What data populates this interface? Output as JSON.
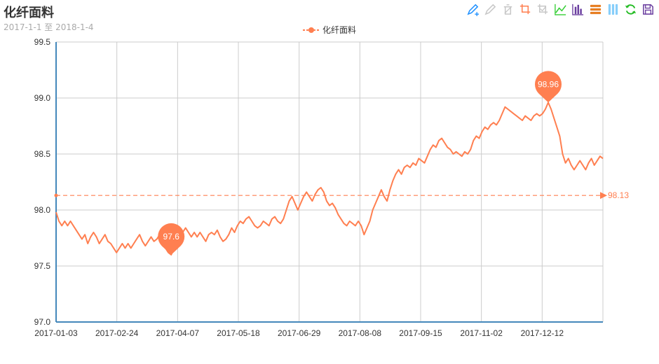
{
  "title": "化纤面料",
  "subtitle": "2017-1-1 至 2018-1-4",
  "legend": {
    "label": "化纤面料"
  },
  "colors": {
    "series": "#ff7f50",
    "axis": "#48b",
    "grid": "#cccccc"
  },
  "toolbox": [
    "mark-pen-icon",
    "mark-undo-icon",
    "mark-clear-icon",
    "data-zoom-icon",
    "data-zoom-reset-icon",
    "line-chart-icon",
    "bar-chart-icon",
    "stack-icon",
    "tiled-icon",
    "restore-icon",
    "save-image-icon"
  ],
  "chart_data": {
    "type": "line",
    "title": "化纤面料",
    "subtitle": "2017-1-1 至 2018-1-4",
    "xlabel": "",
    "ylabel": "",
    "ylim": [
      97.0,
      99.5
    ],
    "yticks": [
      "97.0",
      "97.5",
      "98.0",
      "98.5",
      "99.0",
      "99.5"
    ],
    "xticks": [
      "2017-01-03",
      "2017-02-24",
      "2017-04-07",
      "2017-05-18",
      "2017-06-29",
      "2017-08-08",
      "2017-09-15",
      "2017-11-02",
      "2017-12-12"
    ],
    "grid": true,
    "legend_position": "top-center",
    "markers": {
      "max": "98.96",
      "min": "97.6",
      "average": "98.13"
    },
    "series": [
      {
        "name": "化纤面料",
        "values": [
          97.98,
          97.9,
          97.86,
          97.9,
          97.86,
          97.9,
          97.86,
          97.82,
          97.78,
          97.74,
          97.78,
          97.7,
          97.76,
          97.8,
          97.76,
          97.7,
          97.74,
          97.78,
          97.72,
          97.7,
          97.66,
          97.62,
          97.66,
          97.7,
          97.66,
          97.7,
          97.66,
          97.7,
          97.74,
          97.78,
          97.72,
          97.68,
          97.72,
          97.76,
          97.72,
          97.74,
          97.78,
          97.7,
          97.66,
          97.62,
          97.6,
          97.66,
          97.7,
          97.74,
          97.8,
          97.84,
          97.8,
          97.76,
          97.8,
          97.76,
          97.8,
          97.76,
          97.72,
          97.78,
          97.8,
          97.78,
          97.82,
          97.76,
          97.72,
          97.74,
          97.78,
          97.84,
          97.8,
          97.86,
          97.9,
          97.88,
          97.92,
          97.94,
          97.9,
          97.86,
          97.84,
          97.86,
          97.9,
          97.88,
          97.86,
          97.92,
          97.94,
          97.9,
          97.88,
          97.92,
          98.0,
          98.08,
          98.12,
          98.06,
          98.0,
          98.06,
          98.12,
          98.16,
          98.12,
          98.08,
          98.14,
          98.18,
          98.2,
          98.16,
          98.08,
          98.04,
          98.06,
          98.02,
          97.96,
          97.92,
          97.88,
          97.86,
          97.9,
          97.88,
          97.86,
          97.9,
          97.86,
          97.78,
          97.84,
          97.9,
          98.0,
          98.06,
          98.12,
          98.18,
          98.12,
          98.08,
          98.18,
          98.26,
          98.32,
          98.36,
          98.32,
          98.38,
          98.4,
          98.38,
          98.42,
          98.4,
          98.46,
          98.44,
          98.42,
          98.48,
          98.54,
          98.58,
          98.56,
          98.62,
          98.64,
          98.6,
          98.56,
          98.54,
          98.5,
          98.52,
          98.5,
          98.48,
          98.52,
          98.5,
          98.54,
          98.62,
          98.66,
          98.64,
          98.7,
          98.74,
          98.72,
          98.76,
          98.78,
          98.76,
          98.8,
          98.86,
          98.92,
          98.9,
          98.88,
          98.86,
          98.84,
          98.82,
          98.8,
          98.84,
          98.82,
          98.8,
          98.84,
          98.86,
          98.84,
          98.86,
          98.9,
          98.96,
          98.9,
          98.82,
          98.74,
          98.66,
          98.5,
          98.42,
          98.46,
          98.4,
          98.36,
          98.4,
          98.44,
          98.4,
          98.36,
          98.42,
          98.46,
          98.4,
          98.44,
          98.48,
          98.46
        ]
      }
    ]
  }
}
